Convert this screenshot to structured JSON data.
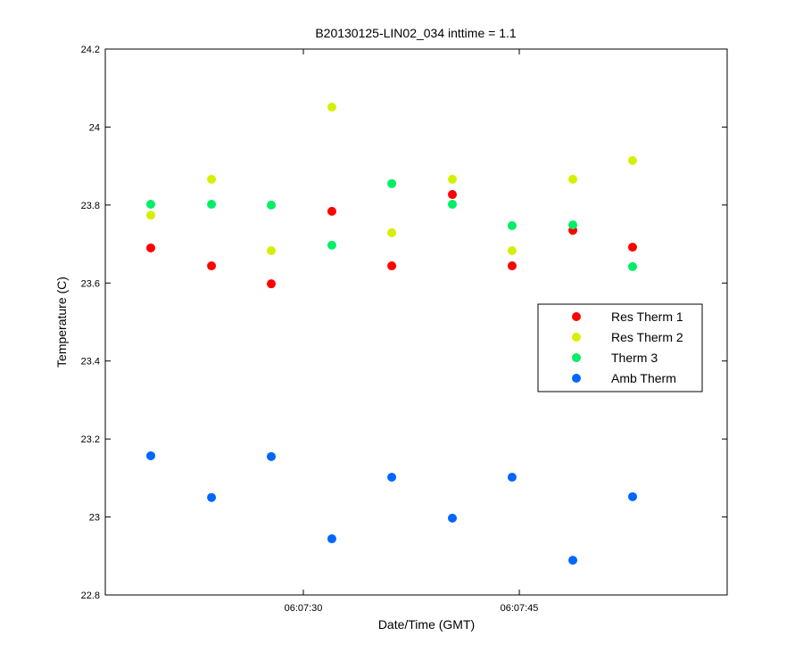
{
  "chart_data": {
    "type": "scatter",
    "title": "B20130125-LIN02_034 inttime = 1.1",
    "x_label": "Date/Time (GMT)",
    "y_label": "Temperature (C)",
    "x": [
      19.4,
      23.62,
      27.77,
      31.98,
      36.14,
      40.35,
      44.5,
      48.72,
      52.87
    ],
    "series": [
      {
        "name": "Res Therm 1",
        "color": "#ff0000",
        "values": [
          23.69,
          23.644,
          23.598,
          23.784,
          23.644,
          23.827,
          23.644,
          23.735,
          23.692
        ]
      },
      {
        "name": "Res Therm 2",
        "color": "#d4f000",
        "values": [
          23.774,
          23.866,
          23.683,
          24.051,
          23.729,
          23.866,
          23.683,
          23.866,
          23.914
        ]
      },
      {
        "name": "Therm 3",
        "color": "#00ee66",
        "values": [
          23.802,
          23.802,
          23.8,
          23.697,
          23.855,
          23.802,
          23.747,
          23.749,
          23.642
        ]
      },
      {
        "name": "Amb Therm",
        "color": "#0066ff",
        "values": [
          23.157,
          23.05,
          23.155,
          22.944,
          23.102,
          22.997,
          23.102,
          22.889,
          23.052
        ]
      }
    ],
    "xlim": [
      16.24,
      59.44
    ],
    "xticks": [
      {
        "value": 30,
        "label": "06:07:30"
      },
      {
        "value": 45,
        "label": "06:07:45"
      }
    ],
    "ylim": [
      22.8,
      24.2
    ],
    "yticks": [
      22.8,
      23,
      23.2,
      23.4,
      23.6,
      23.8,
      24,
      24.2
    ],
    "grid": false,
    "legend_position": "east"
  }
}
